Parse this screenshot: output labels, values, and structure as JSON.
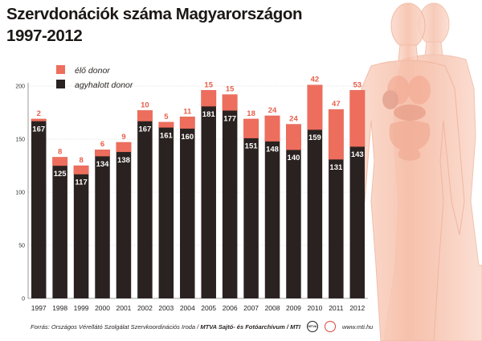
{
  "title_line1": "Szervdonációk száma Magyarországon",
  "title_line2": "1997-2012",
  "footer": {
    "source": "Forrás: Országos Vérellátó Szolgálat Szervkoordinációs Iroda",
    "credit": "MTVA Sajtó- és Fotóarchívum",
    "mti": "MTI",
    "logo1_text": "MTVA",
    "website": "www.mti.hu"
  },
  "colors": {
    "living_donor": "#ee6e5e",
    "deceased_donor": "#2a2220",
    "living_label": "#e8604c",
    "body_silhouette": "#f7c4b0"
  },
  "chart_data": {
    "type": "bar",
    "stacked": true,
    "categories": [
      "1997",
      "1998",
      "1999",
      "2000",
      "2001",
      "2002",
      "2003",
      "2004",
      "2005",
      "2006",
      "2007",
      "2008",
      "2009",
      "2010",
      "2011",
      "2012"
    ],
    "series": [
      {
        "name": "agyhalott donor",
        "values": [
          167,
          125,
          117,
          134,
          138,
          167,
          161,
          160,
          181,
          177,
          151,
          148,
          140,
          159,
          131,
          143
        ]
      },
      {
        "name": "élő donor",
        "values": [
          2,
          8,
          8,
          6,
          9,
          10,
          5,
          11,
          15,
          15,
          18,
          24,
          24,
          42,
          47,
          53
        ]
      }
    ],
    "yticks": [
      "0",
      "50",
      "100",
      "150",
      "200"
    ],
    "ylim": [
      0,
      200
    ],
    "legend_position": "top-left",
    "grid": true
  }
}
